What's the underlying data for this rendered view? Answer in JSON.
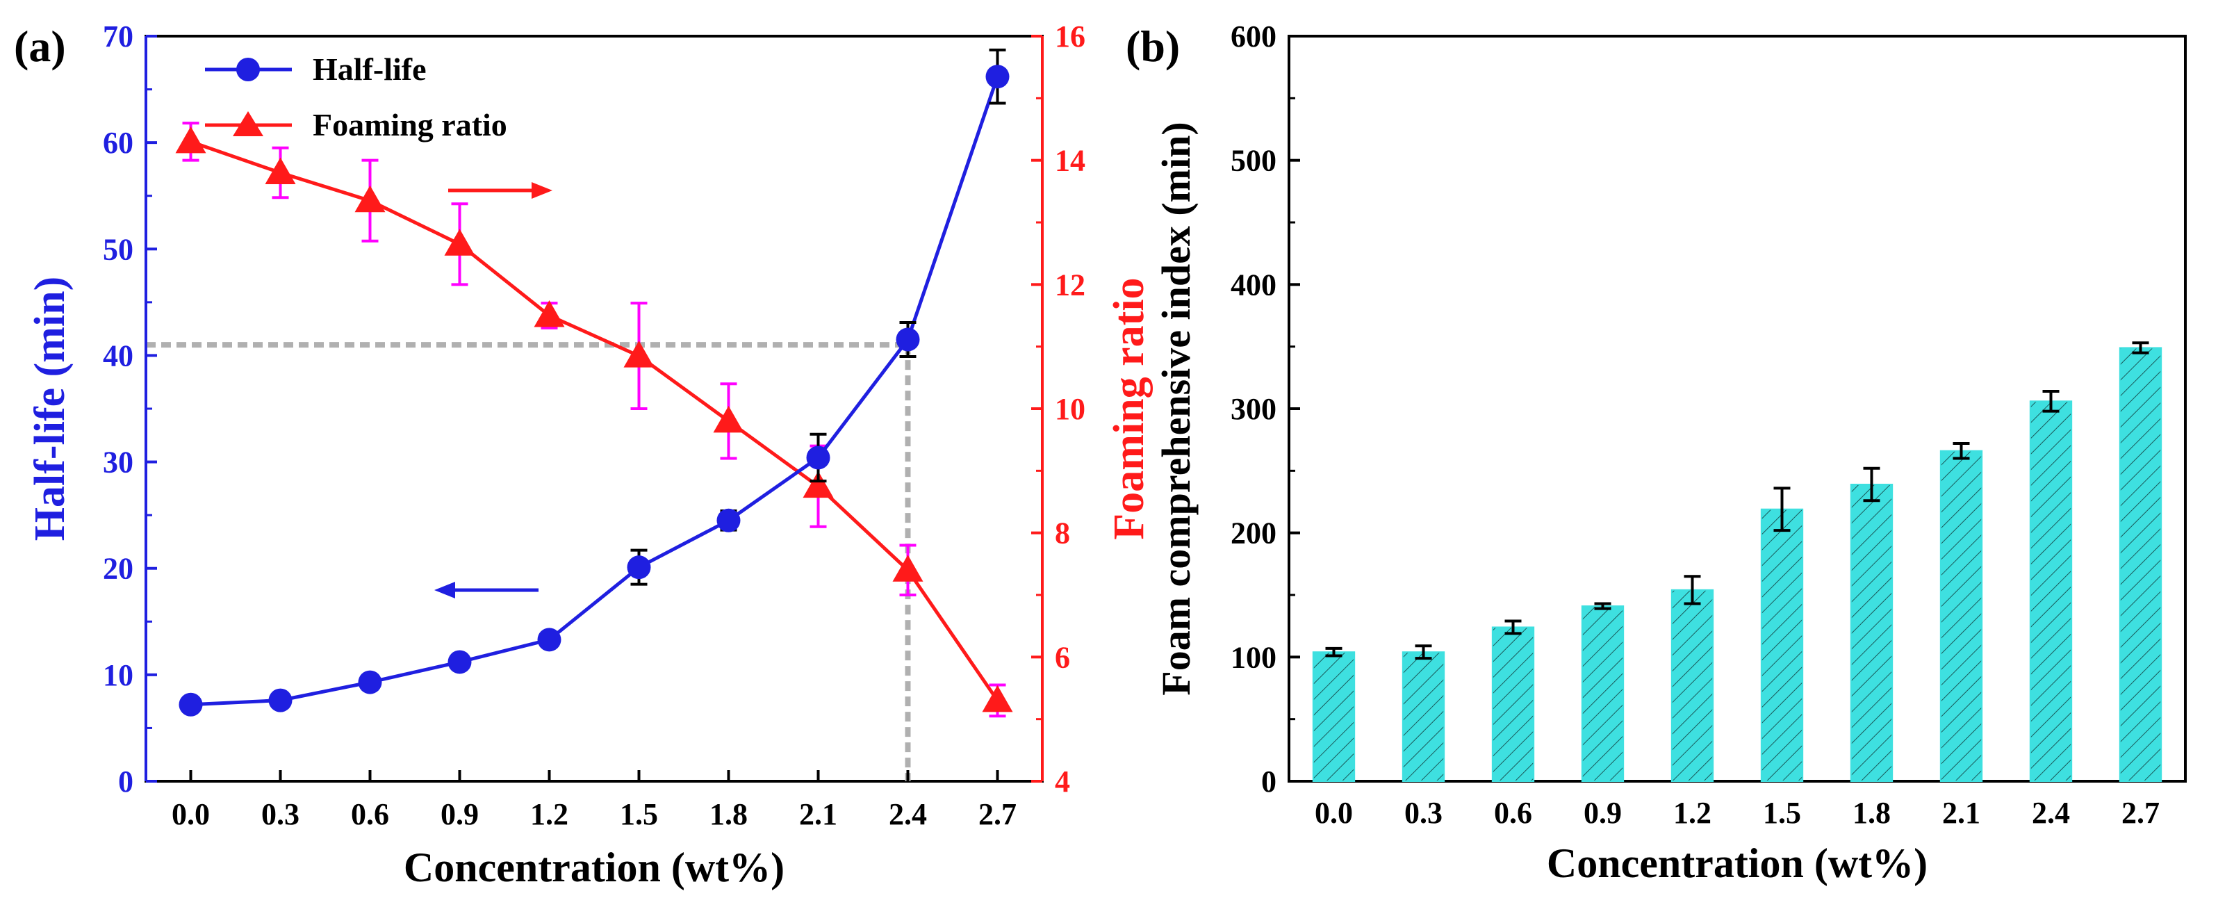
{
  "colors": {
    "blue": "#1f1fe0",
    "red": "#ff1a1a",
    "magenta": "#ff00ff",
    "black": "#000000",
    "cyan": "#3ee0e0",
    "gray": "#b0b0b0"
  },
  "chart_data": [
    {
      "panel_label": "(a)",
      "type": "line",
      "xlabel": "Concentration (wt%)",
      "x": [
        0.0,
        0.3,
        0.6,
        0.9,
        1.2,
        1.5,
        1.8,
        2.1,
        2.4,
        2.7
      ],
      "xtick_labels": [
        "0.0",
        "0.3",
        "0.6",
        "0.9",
        "1.2",
        "1.5",
        "1.8",
        "2.1",
        "2.4",
        "2.7"
      ],
      "xlim": [
        -0.15,
        2.85
      ],
      "left_axis": {
        "label": "Half-life (min)",
        "ylim": [
          0,
          70
        ],
        "ticks": [
          "0",
          "10",
          "20",
          "30",
          "40",
          "50",
          "60",
          "70"
        ]
      },
      "right_axis": {
        "label": "Foaming ratio",
        "ylim": [
          4,
          16
        ],
        "ticks": [
          "4",
          "6",
          "8",
          "10",
          "12",
          "14",
          "16"
        ]
      },
      "series": [
        {
          "name": "Half-life",
          "axis": "left",
          "marker": "circle",
          "values": [
            7.2,
            7.6,
            9.3,
            11.2,
            13.3,
            20.1,
            24.5,
            30.4,
            41.5,
            66.2
          ],
          "errors": [
            0.6,
            0.6,
            0.6,
            0.6,
            0.6,
            1.6,
            0.9,
            2.2,
            1.6,
            2.5
          ]
        },
        {
          "name": "Foaming ratio",
          "axis": "right",
          "marker": "triangle",
          "values": [
            14.3,
            13.8,
            13.35,
            12.65,
            11.5,
            10.85,
            9.8,
            8.75,
            7.4,
            5.3
          ],
          "errors": [
            0.3,
            0.4,
            0.65,
            0.65,
            0.2,
            0.85,
            0.6,
            0.65,
            0.4,
            0.25
          ]
        }
      ],
      "annotations": {
        "ref_x": 2.4,
        "ref_left_y": 41
      }
    },
    {
      "panel_label": "(b)",
      "type": "bar",
      "xlabel": "Concentration (wt%)",
      "ylabel": "Foam comprehensive index (min)",
      "categories": [
        "0.0",
        "0.3",
        "0.6",
        "0.9",
        "1.2",
        "1.5",
        "1.8",
        "2.1",
        "2.4",
        "2.7"
      ],
      "values": [
        104,
        104,
        124,
        141,
        154,
        219,
        239,
        266,
        306,
        349
      ],
      "errors": [
        3,
        5,
        5,
        2,
        11,
        17,
        13,
        6,
        8,
        4
      ],
      "ylim": [
        0,
        600
      ],
      "yticks": [
        "0",
        "100",
        "200",
        "300",
        "400",
        "500",
        "600"
      ]
    }
  ]
}
